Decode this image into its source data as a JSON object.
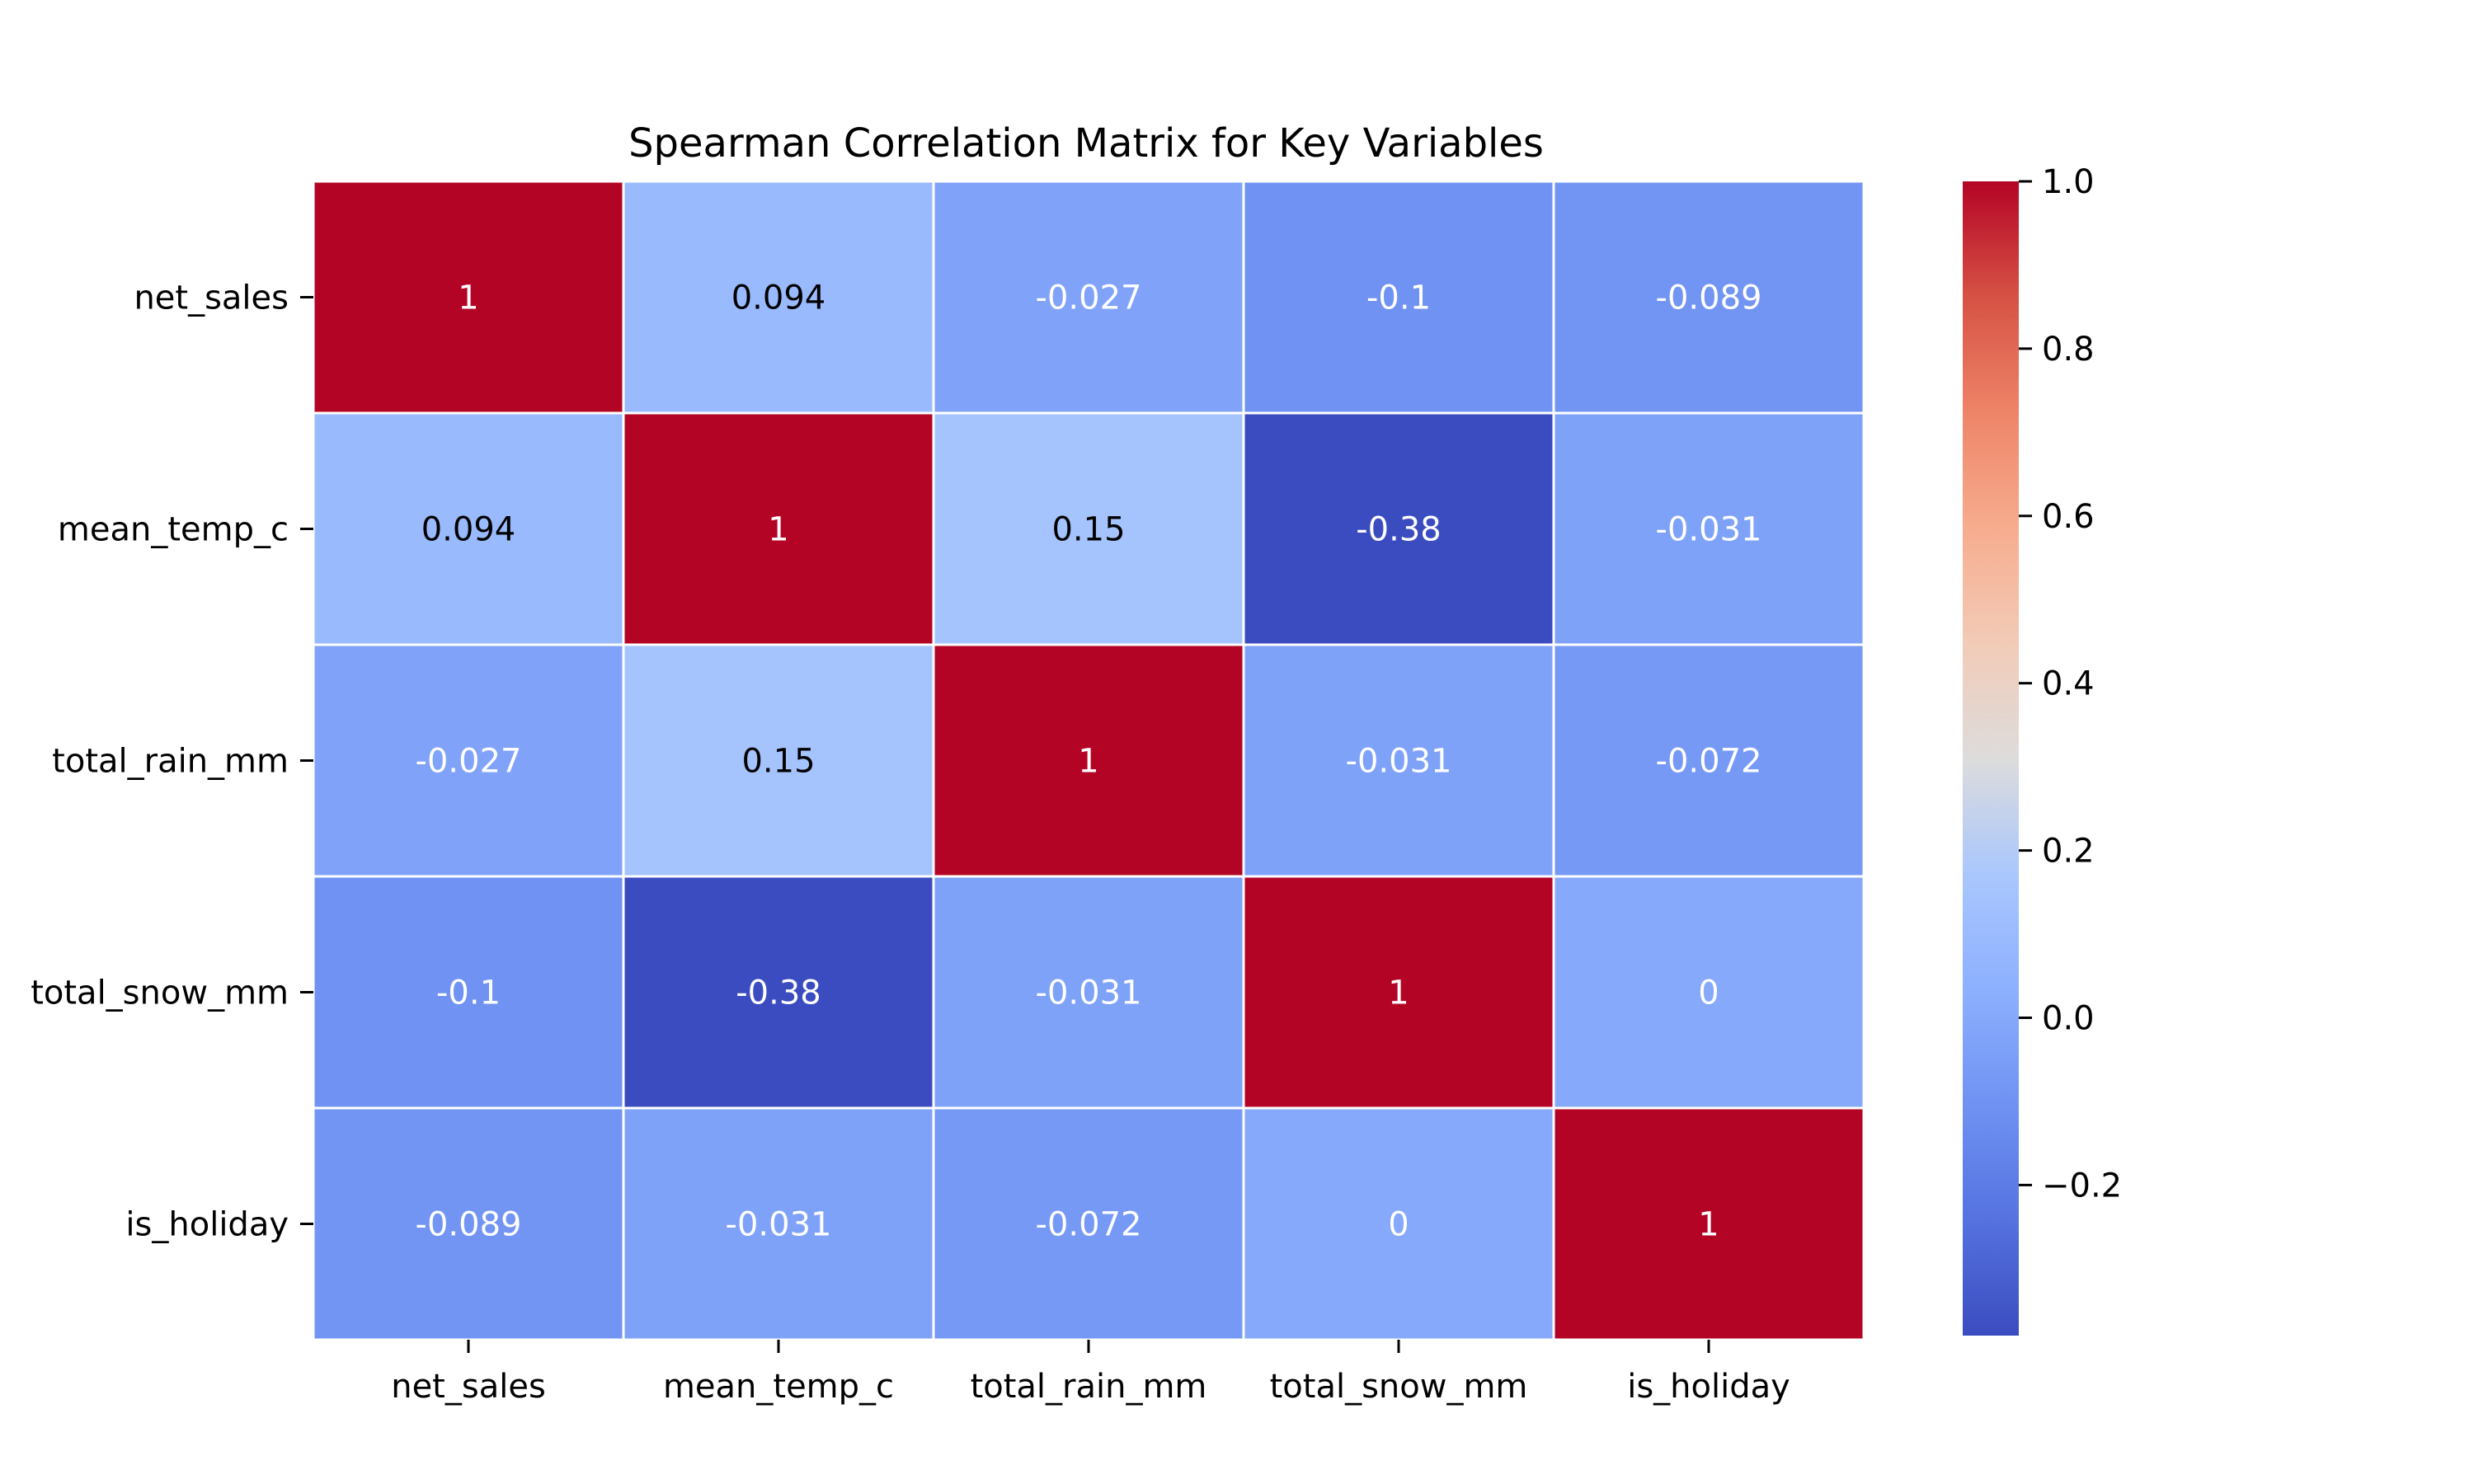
{
  "chart_data": {
    "type": "heatmap",
    "title": "Spearman Correlation Matrix for Key Variables",
    "xlabel": "",
    "ylabel": "",
    "x_categories": [
      "net_sales",
      "mean_temp_c",
      "total_rain_mm",
      "total_snow_mm",
      "is_holiday"
    ],
    "y_categories": [
      "net_sales",
      "mean_temp_c",
      "total_rain_mm",
      "total_snow_mm",
      "is_holiday"
    ],
    "values": [
      [
        1,
        0.094,
        -0.027,
        -0.1,
        -0.089
      ],
      [
        0.094,
        1,
        0.15,
        -0.38,
        -0.031
      ],
      [
        -0.027,
        0.15,
        1,
        -0.031,
        -0.072
      ],
      [
        -0.1,
        -0.38,
        -0.031,
        1,
        0
      ],
      [
        -0.089,
        -0.031,
        -0.072,
        0,
        1
      ]
    ],
    "cell_labels": [
      [
        "1",
        "0.094",
        "-0.027",
        "-0.1",
        "-0.089"
      ],
      [
        "0.094",
        "1",
        "0.15",
        "-0.38",
        "-0.031"
      ],
      [
        "-0.027",
        "0.15",
        "1",
        "-0.031",
        "-0.072"
      ],
      [
        "-0.1",
        "-0.38",
        "-0.031",
        "1",
        "0"
      ],
      [
        "-0.089",
        "-0.031",
        "-0.072",
        "0",
        "1"
      ]
    ],
    "colormap": "coolwarm",
    "color_range": [
      -0.38,
      1.0
    ],
    "colorbar": {
      "ticks": [
        1.0,
        0.8,
        0.6,
        0.4,
        0.2,
        0.0,
        -0.2
      ],
      "tick_labels": [
        "1.0",
        "0.8",
        "0.6",
        "0.4",
        "0.2",
        "0.0",
        "−0.2"
      ],
      "placement": "right"
    },
    "grid": true,
    "legend": "none"
  },
  "colors": {
    "coolwarm_low": "#3b4cc0",
    "coolwarm_high": "#b40426",
    "cell_border": "#ffffff",
    "text_dark": "#000000",
    "text_light": "#ffffff"
  }
}
